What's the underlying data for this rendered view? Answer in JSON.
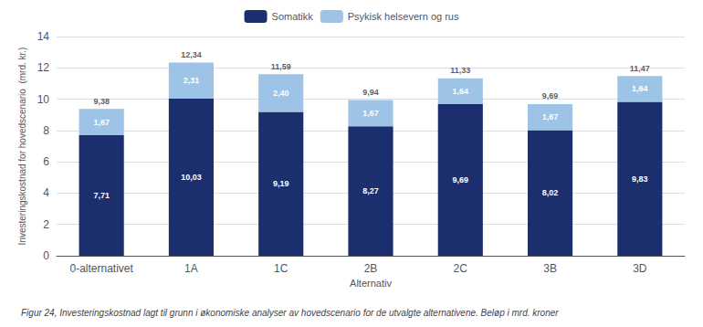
{
  "chart_data": {
    "type": "bar",
    "stacked": true,
    "categories": [
      "0-alternativet",
      "1A",
      "1C",
      "2B",
      "2C",
      "3B",
      "3D"
    ],
    "series": [
      {
        "name": "Somatikk",
        "color": "#1B2E6E",
        "values": [
          7.71,
          10.03,
          9.19,
          8.27,
          9.69,
          8.02,
          9.83
        ],
        "value_labels": [
          "7,71",
          "10,03",
          "9,19",
          "8,27",
          "9,69",
          "8,02",
          "9,83"
        ]
      },
      {
        "name": "Psykisk helsevern og rus",
        "color": "#9DC3E6",
        "values": [
          1.67,
          2.31,
          2.4,
          1.67,
          1.64,
          1.67,
          1.64
        ],
        "value_labels": [
          "1,67",
          "2,31",
          "2,40",
          "1,67",
          "1,64",
          "1,67",
          "1,64"
        ]
      }
    ],
    "totals": [
      9.38,
      12.34,
      11.59,
      9.94,
      11.33,
      9.69,
      11.47
    ],
    "total_labels": [
      "9,38",
      "12,34",
      "11,59",
      "9,94",
      "11,33",
      "9,69",
      "11,47"
    ],
    "data_labels": true,
    "xlabel": "Alternativ",
    "ylabel": "Investeringskostnad for hovedscenario  (mrd. kr.)",
    "caption": "Figur 24, Investeringskostnad lagt til grunn i økonomiske analyser av hovedscenario for de utvalgte alternativene. Beløp i mrd. kroner",
    "ylim": [
      0,
      14
    ],
    "yticks": [
      0,
      2,
      4,
      6,
      8,
      10,
      12,
      14
    ],
    "grid": true,
    "legend": "top"
  }
}
